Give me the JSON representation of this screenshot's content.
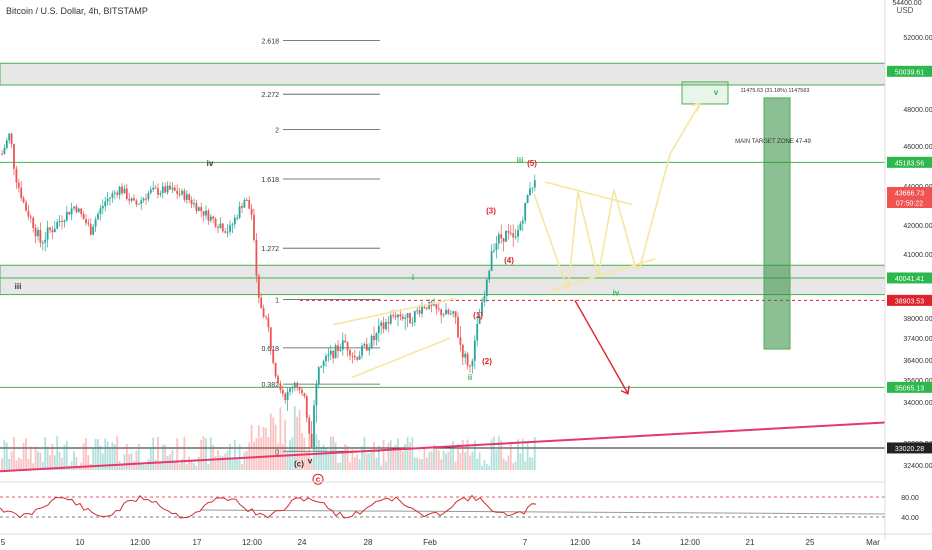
{
  "symbol_title": "Bitcoin / U.S. Dollar, 4h, BITSTAMP",
  "currency": "USD",
  "chart_data": {
    "type": "candlestick",
    "ylim": [
      31600,
      54400
    ],
    "price_ticks": [
      52000,
      50000,
      48000,
      46000,
      44000,
      42000,
      41000,
      40000,
      38000,
      37400,
      36400,
      35600,
      34000,
      33200,
      32400
    ],
    "indicator_ticks": [
      80.0,
      40.0
    ],
    "x_ticks": [
      {
        "label": "5",
        "t": 0.0
      },
      {
        "label": "10",
        "t": 80
      },
      {
        "label": "12:00",
        "t": 140
      },
      {
        "label": "17",
        "t": 197
      },
      {
        "label": "12:00",
        "t": 252
      },
      {
        "label": "24",
        "t": 302
      },
      {
        "label": "28",
        "t": 368
      },
      {
        "label": "Feb",
        "t": 430
      },
      {
        "label": "7",
        "t": 525
      },
      {
        "label": "12:00",
        "t": 580
      },
      {
        "label": "14",
        "t": 636
      },
      {
        "label": "12:00",
        "t": 690
      },
      {
        "label": "21",
        "t": 750
      },
      {
        "label": "25",
        "t": 810
      },
      {
        "label": "Mar",
        "t": 873
      }
    ],
    "price_tags": [
      {
        "text": "50039.61",
        "price": 50039.61,
        "color": "#2db84d"
      },
      {
        "text": "45183.56",
        "price": 45183.56,
        "color": "#2db84d"
      },
      {
        "text": "43666.73",
        "price": 43666.73,
        "color": "#f05350"
      },
      {
        "text": "07:50:22",
        "price": 43100,
        "color": "#f05350"
      },
      {
        "text": "40041.41",
        "price": 40041.41,
        "color": "#2db84d"
      },
      {
        "text": "38903.53",
        "price": 38903.53,
        "color": "#e0202b"
      },
      {
        "text": "35065.13",
        "price": 35065.13,
        "color": "#2db84d"
      },
      {
        "text": "33020.28",
        "price": 33020.28,
        "color": "#222222"
      }
    ],
    "fib_levels": [
      {
        "label": "2.618",
        "price": 51800
      },
      {
        "label": "2.272",
        "price": 48800
      },
      {
        "label": "2",
        "price": 46900
      },
      {
        "label": "1.618",
        "price": 44350
      },
      {
        "label": "1.272",
        "price": 41200
      },
      {
        "label": "1",
        "price": 38950
      },
      {
        "label": "0.618",
        "price": 36950
      },
      {
        "label": "0.382",
        "price": 35300
      },
      {
        "label": "0",
        "price": 32900
      }
    ],
    "horizontal_zones": [
      {
        "top": 50500,
        "bottom": 49300
      },
      {
        "top": 40550,
        "bottom": 39200
      }
    ],
    "horizontal_lines": [
      45183.56,
      40041.41,
      35065.13,
      33020.28
    ],
    "wave_labels": [
      {
        "text": "iv",
        "t": 210,
        "price": 45000,
        "color": "#333333"
      },
      {
        "text": "iii",
        "t": 18,
        "price": 39500,
        "color": "#333333"
      },
      {
        "text": "i",
        "t": 413,
        "price": 39950,
        "color": "#2db84d"
      },
      {
        "text": "iii",
        "t": 520,
        "price": 45150,
        "color": "#2db84d"
      },
      {
        "text": "(5)",
        "t": 532,
        "price": 45000,
        "color": "#e0202b"
      },
      {
        "text": "(3)",
        "t": 491,
        "price": 42600,
        "color": "#e0202b"
      },
      {
        "text": "(4)",
        "t": 509,
        "price": 40650,
        "color": "#e0202b"
      },
      {
        "text": "(1)",
        "t": 478,
        "price": 38000,
        "color": "#e0202b"
      },
      {
        "text": "(2)",
        "t": 487,
        "price": 36250,
        "color": "#e0202b"
      },
      {
        "text": "ii",
        "t": 470,
        "price": 35600,
        "color": "#2db84d"
      },
      {
        "text": "iv",
        "t": 616,
        "price": 39150,
        "color": "#2db84d"
      },
      {
        "text": "v",
        "t": 716,
        "price": 48750,
        "color": "#2db84d"
      },
      {
        "text": "(c)",
        "t": 299,
        "price": 32350,
        "color": "#333333"
      },
      {
        "text": "v",
        "t": 310,
        "price": 32450,
        "color": "#333333"
      },
      {
        "text": "c",
        "t": 318,
        "price": 31850,
        "color": "#e0202b"
      }
    ],
    "annotations": {
      "measure_text": "11475.63 (31.18%) 1147563",
      "target_zone_text": "MAIN TARGET ZONE 47-49"
    },
    "projection_path_prices": [
      [
        534,
        43600
      ],
      [
        568,
        39400
      ],
      [
        578,
        43700
      ],
      [
        598,
        40100
      ],
      [
        614,
        43800
      ],
      [
        636,
        40400
      ],
      [
        640,
        40500
      ],
      [
        670,
        45600
      ],
      [
        700,
        48300
      ]
    ],
    "bear_projection": [
      [
        575,
        38900
      ],
      [
        628,
        34600
      ]
    ],
    "triangle_upper": [
      [
        545,
        44200
      ],
      [
        632,
        43050
      ]
    ],
    "triangle_lower": [
      [
        550,
        39400
      ],
      [
        655,
        40800
      ]
    ],
    "wedge_upper": [
      [
        333,
        37800
      ],
      [
        456,
        39000
      ]
    ],
    "wedge_lower": [
      [
        352,
        35700
      ],
      [
        450,
        37400
      ]
    ],
    "trendline_red": [
      [
        0,
        32200
      ],
      [
        885,
        33600
      ]
    ],
    "candles_seed": 7
  },
  "colors": {
    "bull": "#26a69a",
    "bear": "#ef5350",
    "fib": "#555555",
    "zone_green": "#4caf50",
    "projection": "#f5e6a0",
    "bear_arrow": "#e0202b",
    "trend_red": "#e6396b",
    "target_fill": "#2e8b3a"
  }
}
